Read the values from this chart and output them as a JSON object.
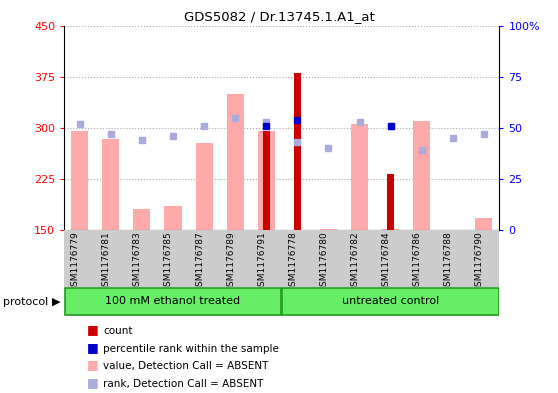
{
  "title": "GDS5082 / Dr.13745.1.A1_at",
  "samples": [
    "GSM1176779",
    "GSM1176781",
    "GSM1176783",
    "GSM1176785",
    "GSM1176787",
    "GSM1176789",
    "GSM1176791",
    "GSM1176778",
    "GSM1176780",
    "GSM1176782",
    "GSM1176784",
    "GSM1176786",
    "GSM1176788",
    "GSM1176790"
  ],
  "values_absent": [
    295,
    283,
    180,
    185,
    278,
    350,
    295,
    150,
    152,
    305,
    152,
    310,
    150,
    168
  ],
  "ranks_absent_pct": [
    52,
    47,
    44,
    46,
    51,
    55,
    53,
    43,
    40,
    53,
    51,
    39,
    45,
    47
  ],
  "count_values": [
    null,
    null,
    null,
    null,
    null,
    null,
    295,
    380,
    null,
    null,
    232,
    null,
    null,
    null
  ],
  "percentile_ranks_pct": [
    null,
    null,
    null,
    null,
    null,
    null,
    51,
    54,
    null,
    null,
    51,
    null,
    null,
    null
  ],
  "ylim_left": [
    150,
    450
  ],
  "ylim_right": [
    0,
    100
  ],
  "yticks_left": [
    150,
    225,
    300,
    375,
    450
  ],
  "yticks_right": [
    0,
    25,
    50,
    75,
    100
  ],
  "color_count": "#cc0000",
  "color_percentile": "#0000cc",
  "color_value_absent": "#ffaaaa",
  "color_rank_absent": "#aaaadd",
  "group_color": "#66ee66",
  "group_border_color": "#229922",
  "bg_label": "#cccccc",
  "dotted_color": "#aaaaaa",
  "group1_label": "100 mM ethanol treated",
  "group2_label": "untreated control",
  "legend": [
    {
      "color": "#cc0000",
      "label": "count"
    },
    {
      "color": "#0000cc",
      "label": "percentile rank within the sample"
    },
    {
      "color": "#ffaaaa",
      "label": "value, Detection Call = ABSENT"
    },
    {
      "color": "#aaaadd",
      "label": "rank, Detection Call = ABSENT"
    }
  ]
}
